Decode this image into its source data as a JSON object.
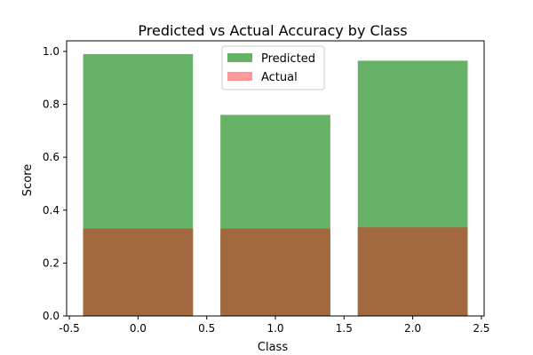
{
  "chart_data": {
    "type": "bar",
    "title": "Predicted vs Actual Accuracy by Class",
    "xlabel": "Class",
    "ylabel": "Score",
    "xlim": [
      -0.52,
      2.52
    ],
    "ylim": [
      0,
      1.04
    ],
    "x": [
      0,
      1,
      2
    ],
    "bar_width": 0.8,
    "xticks": [
      "-0.5",
      "0.0",
      "0.5",
      "1.0",
      "1.5",
      "2.0",
      "2.5"
    ],
    "yticks": [
      "0.0",
      "0.2",
      "0.4",
      "0.6",
      "0.8",
      "1.0"
    ],
    "series": [
      {
        "name": "Predicted",
        "values": [
          0.99,
          0.76,
          0.965
        ],
        "color": "#66b266"
      },
      {
        "name": "Actual",
        "values": [
          0.33,
          0.33,
          0.335
        ],
        "color": "#ff9999"
      }
    ],
    "overlap_color": "#a3693e",
    "legend_position": "top-center",
    "grid": false
  }
}
